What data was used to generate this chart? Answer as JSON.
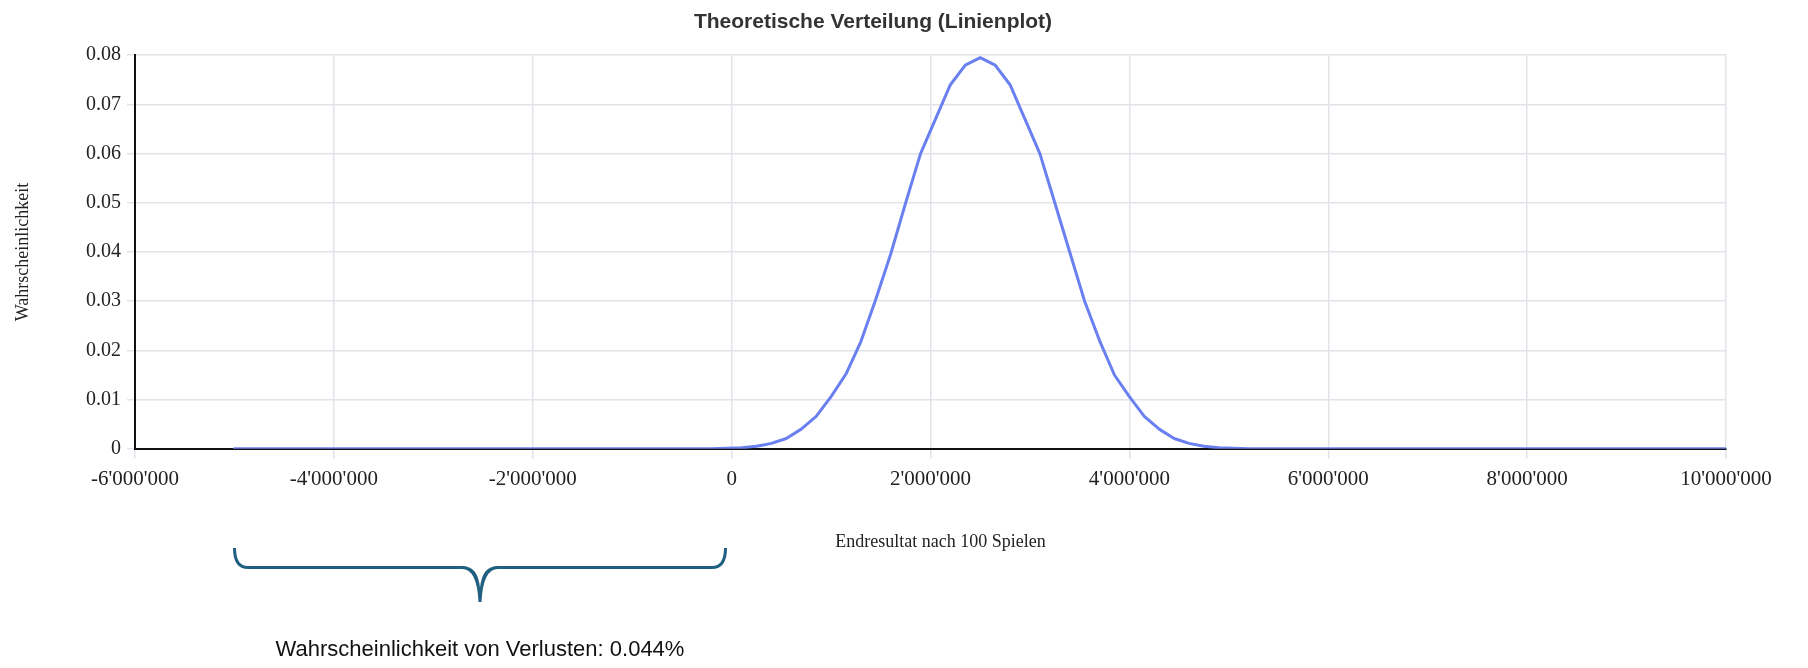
{
  "chart_data": {
    "type": "line",
    "title": "Theoretische Verteilung (Linienplot)",
    "xlabel": "Endresultat nach 100 Spielen",
    "ylabel": "Wahrscheinlichkeit",
    "x": [
      -5000000,
      -2500000,
      -200000,
      -50000,
      100000,
      250000,
      400000,
      550000,
      700000,
      850000,
      1000000,
      1150000,
      1300000,
      1450000,
      1600000,
      1750000,
      1900000,
      2050000,
      2200000,
      2350000,
      2500000,
      2650000,
      2800000,
      2950000,
      3100000,
      3250000,
      3400000,
      3550000,
      3700000,
      3850000,
      4000000,
      4150000,
      4300000,
      4450000,
      4600000,
      4750000,
      4900000,
      5050000,
      5200000,
      7500000,
      10000000
    ],
    "series": [
      {
        "color": "#6b80f0",
        "values": [
          0,
          0,
          0,
          0.0001,
          0.0002,
          0.0005,
          0.0011,
          0.0021,
          0.004,
          0.0066,
          0.0106,
          0.0152,
          0.0218,
          0.0304,
          0.0396,
          0.05,
          0.06,
          0.067,
          0.074,
          0.078,
          0.0795,
          0.078,
          0.074,
          0.067,
          0.06,
          0.05,
          0.04,
          0.03,
          0.022,
          0.015,
          0.0106,
          0.0066,
          0.004,
          0.0021,
          0.0011,
          0.0005,
          0.0002,
          0.0001,
          0,
          0,
          0
        ]
      }
    ],
    "xlim": [
      -6000000,
      10000000
    ],
    "xticks": [
      {
        "value": -6000000,
        "label": "-6'000'000"
      },
      {
        "value": -4000000,
        "label": "-4'000'000"
      },
      {
        "value": -2000000,
        "label": "-2'000'000"
      },
      0,
      {
        "value": 2000000,
        "label": "2'000'000"
      },
      {
        "value": 4000000,
        "label": "4'000'000"
      },
      {
        "value": 6000000,
        "label": "6'000'000"
      },
      {
        "value": 8000000,
        "label": "8'000'000"
      },
      {
        "value": 10000000,
        "label": "10'000'000"
      }
    ],
    "ylim": [
      0,
      0.08
    ],
    "yticks": [
      0,
      0.01,
      0.02,
      0.03,
      0.04,
      0.05,
      0.06,
      0.07,
      0.08
    ],
    "grid": true,
    "legend": false,
    "marker": "none",
    "line_style": "solid",
    "annotations": [
      "Wahrscheinlichkeit von Verlusten: 0.044%"
    ]
  }
}
